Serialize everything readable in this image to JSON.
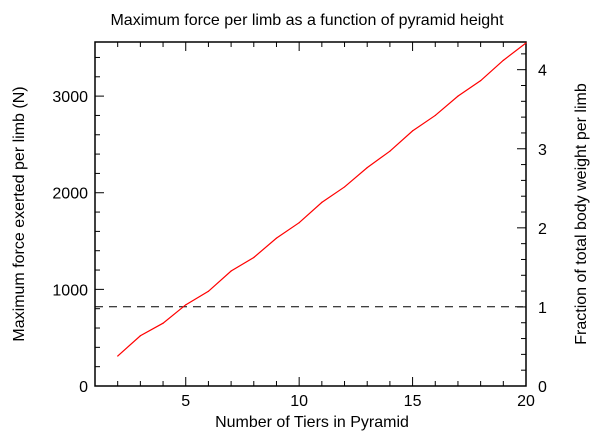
{
  "chart_data": {
    "type": "line",
    "title": "Maximum force per limb as a function of pyramid height",
    "xlabel": "Number of Tiers in Pyramid",
    "ylabel": "Maximum force exerted per limb (N)",
    "y2label": "Fraction of total body weight per limb",
    "xlim": [
      1,
      20
    ],
    "ylim": [
      0,
      3560
    ],
    "y2lim": [
      0,
      4.35
    ],
    "x_ticks": [
      5,
      10,
      15,
      20
    ],
    "y_ticks": [
      0,
      1000,
      2000,
      3000
    ],
    "y2_ticks": [
      0,
      1,
      2,
      3,
      4
    ],
    "grid": false,
    "series": [
      {
        "color": "#ff0000",
        "x": [
          2,
          3,
          4,
          5,
          6,
          7,
          8,
          9,
          10,
          11,
          12,
          13,
          14,
          15,
          16,
          17,
          18,
          19,
          20
        ],
        "values": [
          310,
          520,
          650,
          840,
          980,
          1190,
          1330,
          1530,
          1690,
          1900,
          2060,
          2260,
          2430,
          2640,
          2800,
          3000,
          3160,
          3370,
          3550
        ]
      }
    ],
    "reference_line": {
      "y": 820,
      "style": "dashed",
      "color": "#000000"
    }
  }
}
